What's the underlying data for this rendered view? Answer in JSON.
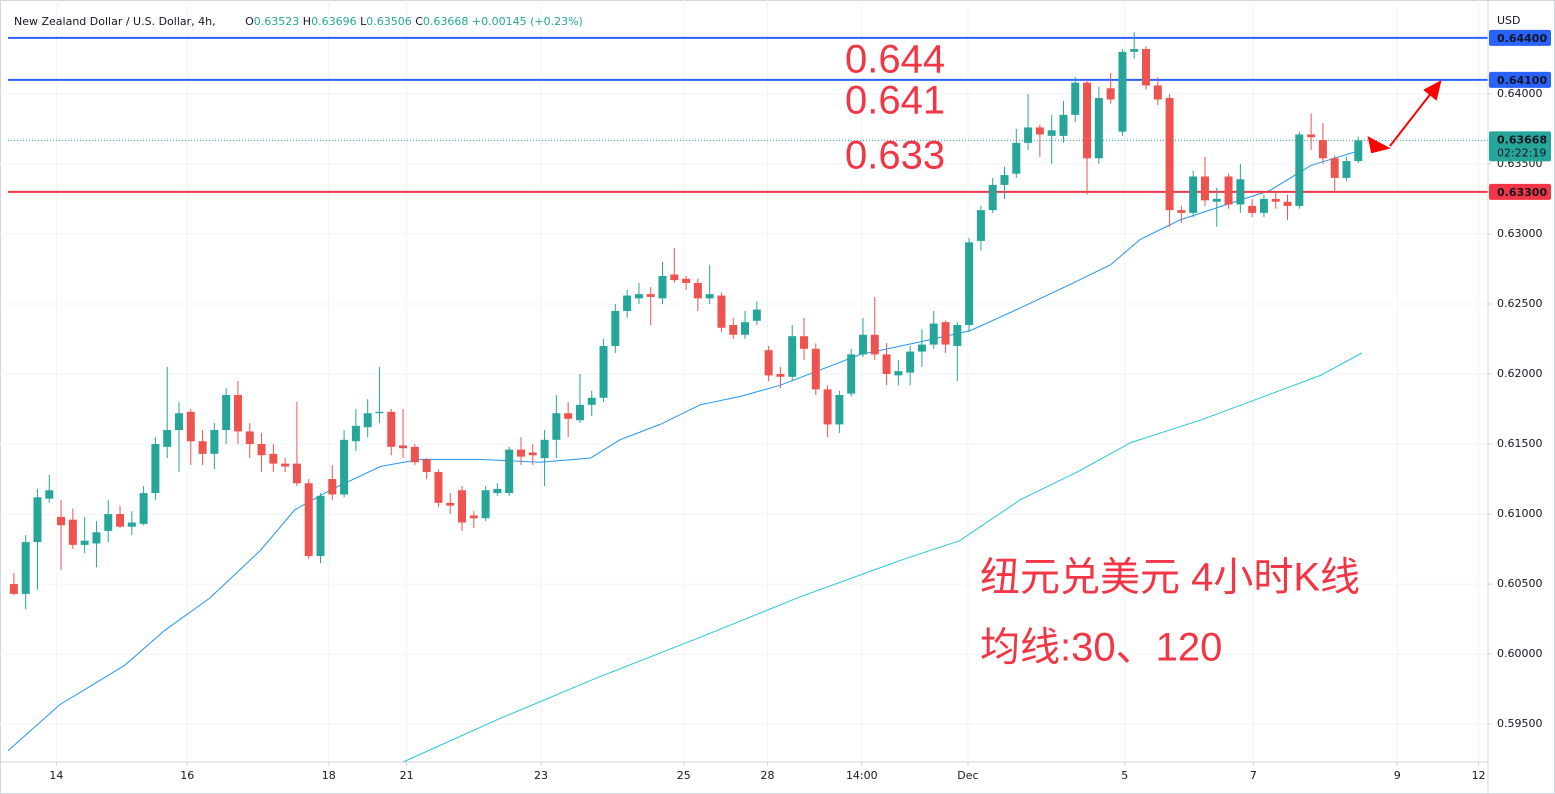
{
  "header": {
    "symbol": "New Zealand Dollar / U.S. Dollar, 4h,",
    "ohlc": [
      {
        "label": "O",
        "value": "0.63523"
      },
      {
        "label": "H",
        "value": "0.63696"
      },
      {
        "label": "L",
        "value": "0.63506"
      },
      {
        "label": "C",
        "value": "0.63668"
      }
    ],
    "change": "+0.00145 (+0.23%)"
  },
  "chart_data": {
    "type": "candlestick",
    "currency": "USD",
    "colors": {
      "up": "#26a69a",
      "down": "#ef5350"
    },
    "open": [
      0.605,
      0.6043,
      0.608,
      0.6111,
      0.6098,
      0.6096,
      0.6078,
      0.6079,
      0.6088,
      0.61,
      0.6091,
      0.6093,
      0.6115,
      0.6148,
      0.616,
      0.6173,
      0.6152,
      0.6143,
      0.616,
      0.6185,
      0.6159,
      0.615,
      0.6143,
      0.6136,
      0.6136,
      0.6122,
      0.607,
      0.6125,
      0.6114,
      0.6152,
      0.6162,
      0.6172,
      0.6173,
      0.6149,
      0.6148,
      0.6139,
      0.613,
      0.6108,
      0.6117,
      0.6099,
      0.6097,
      0.6115,
      0.6115,
      0.6146,
      0.6144,
      0.614,
      0.6153,
      0.6172,
      0.6167,
      0.6178,
      0.6183,
      0.622,
      0.6245,
      0.6254,
      0.6257,
      0.6254,
      0.6271,
      0.6268,
      0.6265,
      0.6254,
      0.6256,
      0.6235,
      0.6228,
      0.6238,
      0.6217,
      0.62,
      0.6198,
      0.6227,
      0.6218,
      0.6189,
      0.6164,
      0.6186,
      0.6214,
      0.6228,
      0.6214,
      0.6199,
      0.6201,
      0.6216,
      0.6221,
      0.6237,
      0.622,
      0.6235,
      0.6295,
      0.6317,
      0.6335,
      0.6343,
      0.6365,
      0.6376,
      0.637,
      0.637,
      0.6385,
      0.6408,
      0.6354,
      0.6404,
      0.6373,
      0.643,
      0.6432,
      0.6406,
      0.6397,
      0.6317,
      0.6315,
      0.6341,
      0.6323,
      0.6341,
      0.6321,
      0.632,
      0.6315,
      0.6325,
      0.6323,
      0.632,
      0.6371,
      0.6367,
      0.6354,
      0.634,
      0.6352
    ],
    "high": [
      0.6058,
      0.6085,
      0.6118,
      0.6128,
      0.611,
      0.6104,
      0.6098,
      0.6095,
      0.611,
      0.6106,
      0.6102,
      0.612,
      0.6155,
      0.6205,
      0.618,
      0.6175,
      0.616,
      0.6165,
      0.619,
      0.6195,
      0.6165,
      0.6158,
      0.615,
      0.614,
      0.618,
      0.6125,
      0.6115,
      0.6135,
      0.616,
      0.6175,
      0.6182,
      0.6205,
      0.6175,
      0.6175,
      0.615,
      0.614,
      0.6132,
      0.6115,
      0.612,
      0.6102,
      0.612,
      0.6122,
      0.6148,
      0.6155,
      0.615,
      0.616,
      0.6185,
      0.618,
      0.62,
      0.6188,
      0.6225,
      0.625,
      0.626,
      0.6265,
      0.6262,
      0.628,
      0.629,
      0.627,
      0.6268,
      0.6278,
      0.6258,
      0.624,
      0.6245,
      0.6252,
      0.622,
      0.6205,
      0.6235,
      0.624,
      0.6222,
      0.6192,
      0.6188,
      0.6218,
      0.624,
      0.6255,
      0.6222,
      0.621,
      0.622,
      0.6232,
      0.6245,
      0.6238,
      0.6237,
      0.6297,
      0.632,
      0.634,
      0.6348,
      0.6375,
      0.64,
      0.6378,
      0.6385,
      0.6395,
      0.6412,
      0.641,
      0.6405,
      0.6415,
      0.6432,
      0.6444,
      0.6434,
      0.6412,
      0.64,
      0.632,
      0.6345,
      0.6355,
      0.6333,
      0.6343,
      0.635,
      0.6325,
      0.6328,
      0.633,
      0.6328,
      0.6373,
      0.6386,
      0.6379,
      0.6356,
      0.6355,
      0.63696
    ],
    "low": [
      0.6042,
      0.6032,
      0.6046,
      0.6108,
      0.606,
      0.6075,
      0.6072,
      0.6062,
      0.608,
      0.609,
      0.6085,
      0.6092,
      0.611,
      0.614,
      0.613,
      0.6135,
      0.6135,
      0.6132,
      0.615,
      0.615,
      0.614,
      0.613,
      0.613,
      0.613,
      0.612,
      0.6068,
      0.6065,
      0.611,
      0.6112,
      0.6145,
      0.6155,
      0.6165,
      0.6142,
      0.614,
      0.6135,
      0.6125,
      0.6105,
      0.61,
      0.6088,
      0.609,
      0.6095,
      0.6113,
      0.6113,
      0.6135,
      0.6135,
      0.612,
      0.614,
      0.6155,
      0.6165,
      0.617,
      0.618,
      0.6215,
      0.624,
      0.625,
      0.6235,
      0.625,
      0.6265,
      0.626,
      0.6245,
      0.625,
      0.623,
      0.6225,
      0.6225,
      0.6235,
      0.6195,
      0.619,
      0.6195,
      0.621,
      0.6185,
      0.6155,
      0.6158,
      0.6184,
      0.6212,
      0.621,
      0.6192,
      0.6192,
      0.6192,
      0.6205,
      0.6218,
      0.6215,
      0.6195,
      0.623,
      0.6288,
      0.6315,
      0.6325,
      0.634,
      0.636,
      0.6355,
      0.635,
      0.6365,
      0.638,
      0.6328,
      0.635,
      0.6393,
      0.637,
      0.6425,
      0.6403,
      0.6392,
      0.6305,
      0.6308,
      0.6312,
      0.632,
      0.6305,
      0.6318,
      0.6315,
      0.6312,
      0.6312,
      0.6318,
      0.631,
      0.6318,
      0.636,
      0.635,
      0.633,
      0.6338,
      0.63506
    ],
    "close": [
      0.6043,
      0.608,
      0.6112,
      0.6117,
      0.6092,
      0.6078,
      0.6081,
      0.6087,
      0.61,
      0.6091,
      0.6094,
      0.6115,
      0.615,
      0.616,
      0.6172,
      0.6152,
      0.6143,
      0.616,
      0.6185,
      0.6159,
      0.615,
      0.6142,
      0.6136,
      0.6134,
      0.6122,
      0.607,
      0.6113,
      0.6114,
      0.6153,
      0.6163,
      0.6172,
      0.6173,
      0.6148,
      0.6147,
      0.6137,
      0.613,
      0.6108,
      0.6106,
      0.6094,
      0.6097,
      0.6117,
      0.6118,
      0.6146,
      0.6141,
      0.6142,
      0.6153,
      0.6172,
      0.6168,
      0.6178,
      0.6183,
      0.622,
      0.6245,
      0.6256,
      0.6257,
      0.6255,
      0.627,
      0.6267,
      0.6265,
      0.6254,
      0.6257,
      0.6233,
      0.6228,
      0.6237,
      0.6246,
      0.6199,
      0.6198,
      0.6227,
      0.6218,
      0.6189,
      0.6164,
      0.6185,
      0.6214,
      0.6228,
      0.6214,
      0.62,
      0.6202,
      0.6216,
      0.6221,
      0.6236,
      0.6221,
      0.6235,
      0.6294,
      0.6317,
      0.6335,
      0.6342,
      0.6365,
      0.6376,
      0.6371,
      0.6374,
      0.6385,
      0.6408,
      0.6354,
      0.6397,
      0.6396,
      0.643,
      0.6432,
      0.6406,
      0.6396,
      0.6317,
      0.6315,
      0.6341,
      0.6324,
      0.6325,
      0.6321,
      0.6339,
      0.6315,
      0.6325,
      0.6323,
      0.632,
      0.6371,
      0.6369,
      0.6354,
      0.634,
      0.6352,
      0.63668
    ],
    "xlim": [
      -0.5,
      125
    ],
    "xticks": [
      {
        "value": 3.6,
        "label": "14"
      },
      {
        "value": 14.7,
        "label": "16"
      },
      {
        "value": 26.7,
        "label": "18"
      },
      {
        "value": 33.3,
        "label": "21"
      },
      {
        "value": 44.7,
        "label": "23"
      },
      {
        "value": 56.8,
        "label": "25"
      },
      {
        "value": 63.9,
        "label": "28"
      },
      {
        "value": 71.9,
        "label": "14:00"
      },
      {
        "value": 80.9,
        "label": "Dec"
      },
      {
        "value": 94.2,
        "label": "5"
      },
      {
        "value": 105.1,
        "label": "7"
      },
      {
        "value": 117.3,
        "label": "9"
      },
      {
        "value": 124.2,
        "label": "12"
      }
    ],
    "ylim": [
      0.5923,
      0.6467
    ],
    "yticks": [
      {
        "value": 0.64,
        "label": "0.64000"
      },
      {
        "value": 0.635,
        "label": "0.63500"
      },
      {
        "value": 0.63,
        "label": "0.63000"
      },
      {
        "value": 0.625,
        "label": "0.62500"
      },
      {
        "value": 0.62,
        "label": "0.62000"
      },
      {
        "value": 0.615,
        "label": "0.61500"
      },
      {
        "value": 0.61,
        "label": "0.61000"
      },
      {
        "value": 0.605,
        "label": "0.60500"
      },
      {
        "value": 0.6,
        "label": "0.60000"
      },
      {
        "value": 0.595,
        "label": "0.59500"
      }
    ],
    "grid": true,
    "moving_averages": [
      {
        "color": "#2196f3",
        "x": [
          -0.5,
          3.9,
          9.4,
          12.8,
          16.6,
          20.9,
          23.8,
          26.8,
          31.1,
          34.4,
          39.5,
          44.6,
          48.9,
          51.4,
          54.8,
          58.2,
          61.6,
          65,
          68.4,
          71.8,
          76.9,
          81.1,
          85.3,
          89.6,
          93,
          95.5,
          98.9,
          103.2,
          106.5,
          110,
          114.3
        ],
        "values": [
          0.5931,
          0.5964,
          0.5992,
          0.6017,
          0.604,
          0.6074,
          0.6103,
          0.6117,
          0.6134,
          0.6139,
          0.6139,
          0.6137,
          0.614,
          0.6153,
          0.6164,
          0.6178,
          0.6184,
          0.6192,
          0.6203,
          0.6214,
          0.6223,
          0.6231,
          0.6247,
          0.6264,
          0.6278,
          0.6296,
          0.631,
          0.6322,
          0.6331,
          0.6349,
          0.636
        ]
      },
      {
        "color": "#26c6da",
        "x": [
          33,
          41.2,
          49.7,
          58.2,
          66.7,
          75.2,
          80.2,
          85.3,
          90.4,
          94.7,
          100.6,
          105.7,
          110.8,
          114.3
        ],
        "values": [
          0.5923,
          0.5954,
          0.5984,
          0.6012,
          0.6041,
          0.6067,
          0.6081,
          0.611,
          0.6131,
          0.6151,
          0.6167,
          0.6183,
          0.6199,
          0.6215
        ]
      }
    ],
    "levels": [
      {
        "value": 0.644,
        "label": "0.64400",
        "color": "#2962ff"
      },
      {
        "value": 0.641,
        "label": "0.64100",
        "color": "#2962ff"
      },
      {
        "value": 0.633,
        "label": "0.63300",
        "color": "#f23645"
      }
    ],
    "last_price": {
      "value": 0.63668,
      "label": "0.63668",
      "countdown": "02:22:19",
      "color": "#26a69a"
    },
    "annotations": [
      "0.644",
      "0.641",
      "0.633",
      "纽元兑美元 4小时K线",
      "均线:30、120"
    ]
  }
}
